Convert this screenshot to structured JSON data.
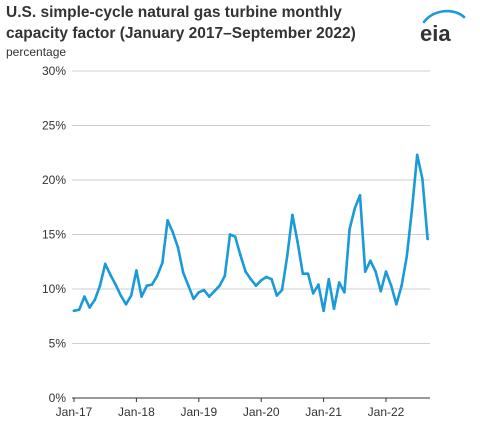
{
  "header": {
    "title": "U.S. simple-cycle natural gas turbine monthly capacity factor (January 2017–September 2022)",
    "logo_text": "eia"
  },
  "colors": {
    "line": "#1a9ad6",
    "grid": "#cfcfcf",
    "axis": "#333333",
    "text": "#333333"
  },
  "chart_data": {
    "type": "line",
    "title": "U.S. simple-cycle natural gas turbine monthly capacity factor (January 2017–September 2022)",
    "ylabel": "percentage",
    "xlabel": "",
    "ylim": [
      0,
      30
    ],
    "yticks": [
      0,
      5,
      10,
      15,
      20,
      25,
      30
    ],
    "ytick_labels": [
      "0%",
      "5%",
      "10%",
      "15%",
      "20%",
      "25%",
      "30%"
    ],
    "xtick_labels": [
      "Jan-17",
      "Jan-18",
      "Jan-19",
      "Jan-20",
      "Jan-21",
      "Jan-22"
    ],
    "xtick_months": [
      "2017-01",
      "2018-01",
      "2019-01",
      "2020-01",
      "2021-01",
      "2022-01"
    ],
    "grid": "horizontal",
    "legend": "none",
    "x": [
      "2017-01",
      "2017-02",
      "2017-03",
      "2017-04",
      "2017-05",
      "2017-06",
      "2017-07",
      "2017-08",
      "2017-09",
      "2017-10",
      "2017-11",
      "2017-12",
      "2018-01",
      "2018-02",
      "2018-03",
      "2018-04",
      "2018-05",
      "2018-06",
      "2018-07",
      "2018-08",
      "2018-09",
      "2018-10",
      "2018-11",
      "2018-12",
      "2019-01",
      "2019-02",
      "2019-03",
      "2019-04",
      "2019-05",
      "2019-06",
      "2019-07",
      "2019-08",
      "2019-09",
      "2019-10",
      "2019-11",
      "2019-12",
      "2020-01",
      "2020-02",
      "2020-03",
      "2020-04",
      "2020-05",
      "2020-06",
      "2020-07",
      "2020-08",
      "2020-09",
      "2020-10",
      "2020-11",
      "2020-12",
      "2021-01",
      "2021-02",
      "2021-03",
      "2021-04",
      "2021-05",
      "2021-06",
      "2021-07",
      "2021-08",
      "2021-09",
      "2021-10",
      "2021-11",
      "2021-12",
      "2022-01",
      "2022-02",
      "2022-03",
      "2022-04",
      "2022-05",
      "2022-06",
      "2022-07",
      "2022-08",
      "2022-09"
    ],
    "series": [
      {
        "values": [
          8.0,
          8.1,
          9.3,
          8.3,
          9.0,
          10.3,
          12.3,
          11.3,
          10.4,
          9.4,
          8.6,
          9.4,
          11.7,
          9.3,
          10.3,
          10.4,
          11.2,
          12.4,
          16.3,
          15.2,
          13.8,
          11.5,
          10.3,
          9.1,
          9.7,
          9.9,
          9.3,
          9.8,
          10.3,
          11.2,
          15.0,
          14.8,
          13.1,
          11.6,
          10.9,
          10.3,
          10.8,
          11.1,
          10.9,
          9.4,
          9.9,
          13.0,
          16.8,
          14.3,
          11.4,
          11.4,
          9.6,
          10.4,
          8.0,
          10.9,
          8.2,
          10.6,
          9.7,
          15.5,
          17.4,
          18.6,
          11.6,
          12.6,
          11.6,
          9.8,
          11.6,
          10.3,
          8.6,
          10.3,
          13.0,
          17.3,
          22.3,
          20.1,
          14.6
        ]
      }
    ]
  }
}
